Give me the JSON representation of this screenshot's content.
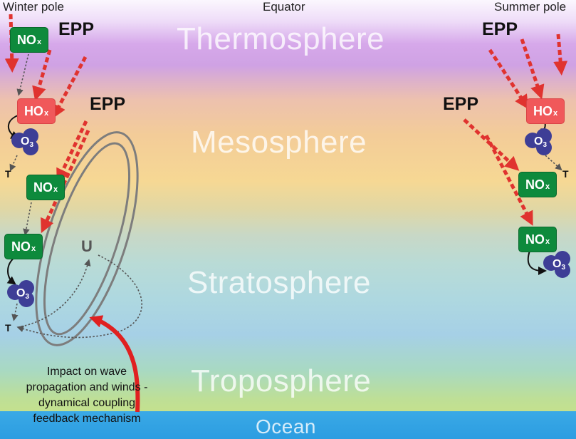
{
  "header": {
    "winter_pole": "Winter pole",
    "equator": "Equator",
    "summer_pole": "Summer pole"
  },
  "layers": {
    "thermosphere": "Thermosphere",
    "mesosphere": "Mesosphere",
    "stratosphere": "Stratosphere",
    "troposphere": "Troposphere",
    "ocean": "Ocean"
  },
  "labels": {
    "epp": "EPP",
    "nox": "NO",
    "hox": "HO",
    "x_sub": "x",
    "o3": "O",
    "o3_sub": "3",
    "t": "T",
    "u": "U"
  },
  "caption": [
    "Impact on wave",
    "propagation and winds -",
    "dynamical coupling",
    "feedback mechanism"
  ],
  "colors": {
    "nox": "#0e8a3c",
    "hox": "#f0585a",
    "o3": "#3e3e96",
    "epp_arrow": "#e0332f",
    "feedback_arrow": "#e02020",
    "vortex": "#7d7d7d"
  }
}
